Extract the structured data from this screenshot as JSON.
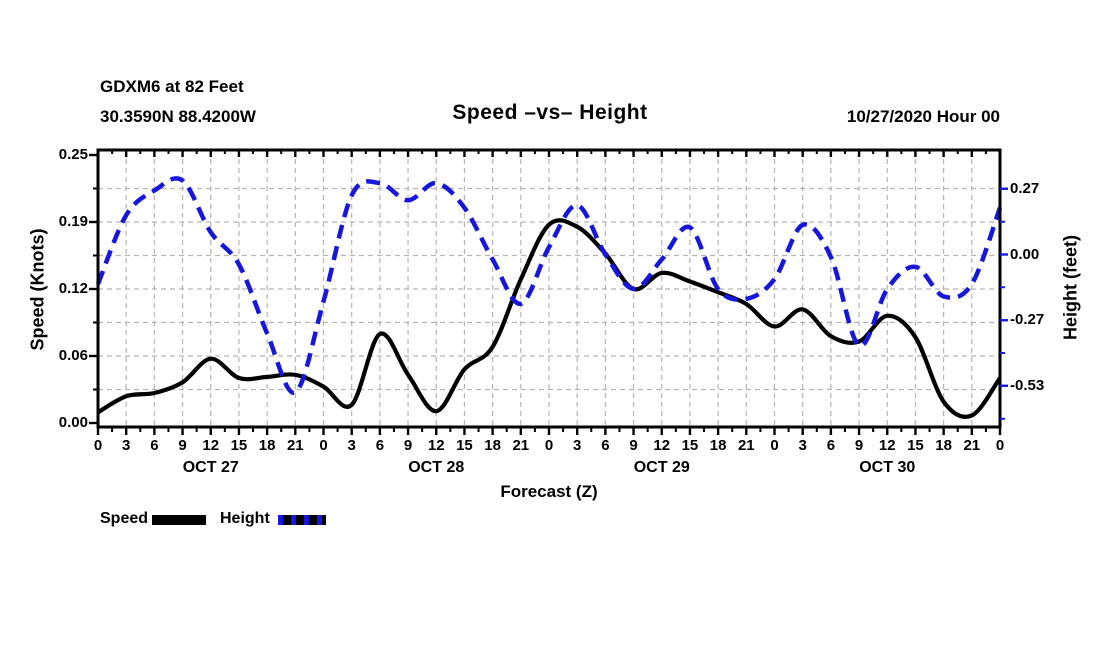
{
  "header": {
    "station_line1": "GDXM6 at 82 Feet",
    "station_line2": "30.3590N 88.4200W",
    "title": "Speed –vs– Height",
    "datetime": "10/27/2020 Hour 00"
  },
  "legend": {
    "speed_label": "Speed",
    "height_label": "Height"
  },
  "colors": {
    "speed": "#000000",
    "height": "#1616dd",
    "grid": "#b4b4b4",
    "background": "#ffffff",
    "text": "#000000"
  },
  "chart_data": {
    "type": "line",
    "title": "Speed –vs– Height",
    "xlabel": "Forecast (Z)",
    "ylabel_left": "Speed (Knots)",
    "ylabel_right": "Height (feet)",
    "x_hours": [
      0,
      3,
      6,
      9,
      12,
      15,
      18,
      21,
      24,
      27,
      30,
      33,
      36,
      39,
      42,
      45,
      48,
      51,
      54,
      57,
      60,
      63,
      66,
      69,
      72,
      75,
      78,
      81,
      84,
      87,
      90,
      93,
      96
    ],
    "x_hour_tick_labels": [
      "0",
      "3",
      "6",
      "9",
      "12",
      "15",
      "18",
      "21",
      "0",
      "3",
      "6",
      "9",
      "12",
      "15",
      "18",
      "21",
      "0",
      "3",
      "6",
      "9",
      "12",
      "15",
      "18",
      "21",
      "0",
      "3",
      "6",
      "9",
      "12",
      "15",
      "18",
      "21",
      "0"
    ],
    "day_labels": [
      "OCT 27",
      "OCT 28",
      "OCT 29",
      "OCT 30"
    ],
    "x_minor_tick_step_hours": 1.5,
    "grid": true,
    "legend_position": "bottom-left",
    "left_axis": {
      "ylim": [
        0,
        0.25
      ],
      "tick_values": [
        0.25,
        0.1875,
        0.125,
        0.0625,
        0
      ],
      "tick_labels": [
        "0.25",
        "0.19",
        "0.12",
        "0.06",
        "0.00"
      ],
      "minor_tick_values": [
        0.03125,
        0.09375,
        0.15625,
        0.21875
      ]
    },
    "right_axis": {
      "tick_values": [
        0.267,
        0,
        -0.267,
        -0.533
      ],
      "tick_labels": [
        "0.27",
        "0.00",
        "-0.27",
        "-0.53"
      ],
      "minor_tick_values": [
        0.133,
        -0.133,
        -0.4,
        -0.667
      ]
    },
    "series": [
      {
        "name": "Speed",
        "axis": "left",
        "style": "solid",
        "color": "#000000",
        "values": [
          0.01,
          0.025,
          0.028,
          0.038,
          0.06,
          0.042,
          0.043,
          0.045,
          0.034,
          0.017,
          0.083,
          0.045,
          0.011,
          0.05,
          0.071,
          0.134,
          0.185,
          0.183,
          0.158,
          0.125,
          0.14,
          0.132,
          0.122,
          0.111,
          0.09,
          0.106,
          0.081,
          0.076,
          0.1,
          0.08,
          0.02,
          0.007,
          0.042
        ]
      },
      {
        "name": "Height",
        "axis": "right",
        "style": "dashed",
        "color": "#1616dd",
        "values": [
          -0.12,
          0.16,
          0.26,
          0.3,
          0.09,
          -0.04,
          -0.32,
          -0.56,
          -0.19,
          0.24,
          0.29,
          0.22,
          0.29,
          0.19,
          -0.02,
          -0.2,
          0.03,
          0.2,
          0.0,
          -0.14,
          -0.02,
          0.11,
          -0.14,
          -0.18,
          -0.1,
          0.12,
          -0.01,
          -0.37,
          -0.14,
          -0.05,
          -0.17,
          -0.12,
          0.19
        ]
      }
    ]
  }
}
